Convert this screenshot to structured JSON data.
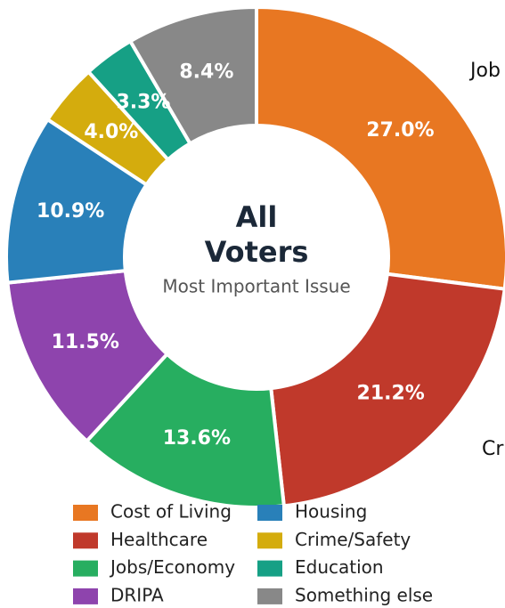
{
  "chart_data": {
    "type": "donut",
    "center_text": [
      "All",
      "Voters"
    ],
    "subtitle": "Most Important Issue",
    "series": [
      {
        "name": "Cost of Living",
        "color": "#e87722",
        "values": [
          27.0
        ],
        "value_labels": [
          "27.0%"
        ]
      },
      {
        "name": "Healthcare",
        "color": "#c0392b",
        "values": [
          21.2
        ],
        "value_labels": [
          "21.2%"
        ]
      },
      {
        "name": "Jobs/Economy",
        "color": "#27ae60",
        "values": [
          13.6
        ],
        "value_labels": [
          "13.6%"
        ]
      },
      {
        "name": "DRIPA",
        "color": "#8e44ad",
        "values": [
          11.5
        ],
        "value_labels": [
          "11.5%"
        ]
      },
      {
        "name": "Housing",
        "color": "#2980b9",
        "values": [
          10.9
        ],
        "value_labels": [
          "10.9%"
        ]
      },
      {
        "name": "Crime/Safety",
        "color": "#d4ac0d",
        "values": [
          4.0
        ],
        "value_labels": [
          "4.0%"
        ]
      },
      {
        "name": "Education",
        "color": "#16a085",
        "values": [
          3.3
        ],
        "value_labels": [
          "3.3%"
        ]
      },
      {
        "name": "Something else",
        "color": "#888888",
        "values": [
          8.4
        ],
        "value_labels": [
          "8.4%"
        ]
      }
    ],
    "annotations": [
      "Job",
      "Cr"
    ],
    "legend": "bottom"
  }
}
